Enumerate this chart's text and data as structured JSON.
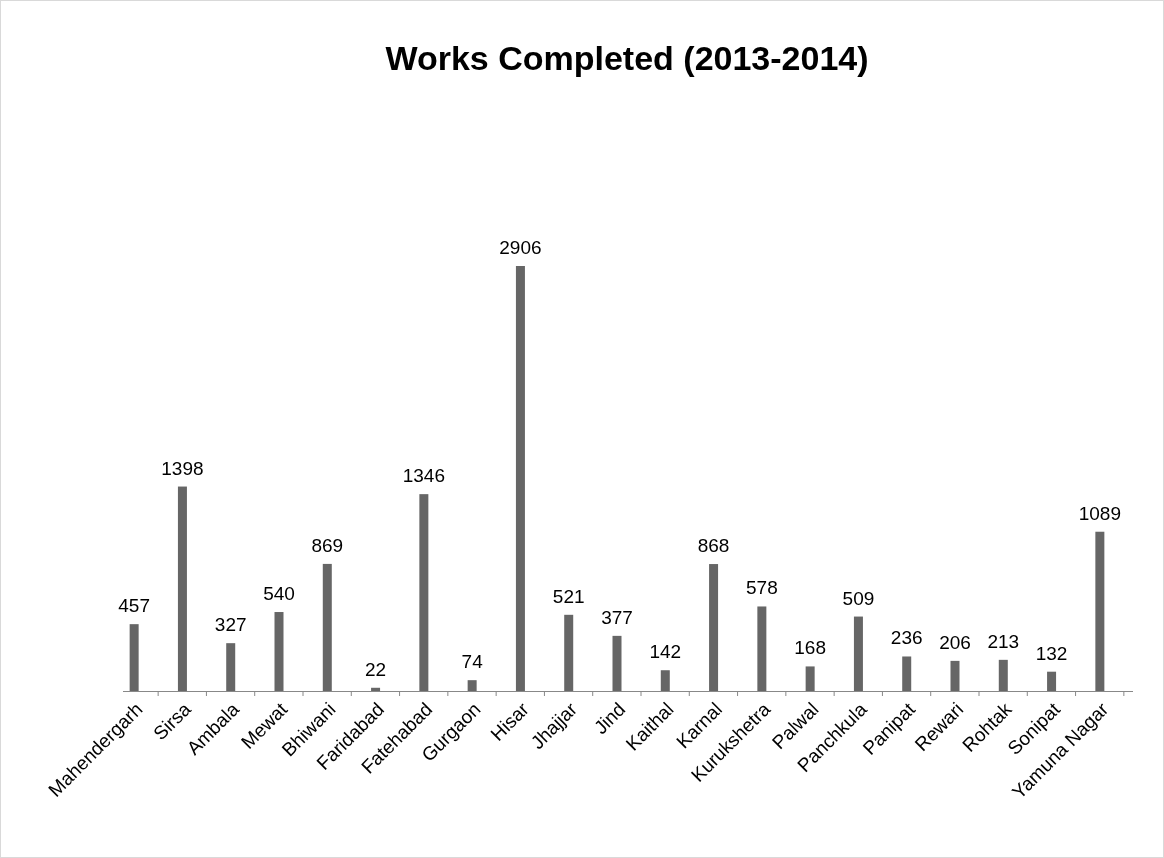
{
  "chart_data": {
    "type": "bar",
    "title": "Works Completed (2013-2014)",
    "categories": [
      "Mahendergarh",
      "Sirsa",
      "Ambala",
      "Mewat",
      "Bhiwani",
      "Faridabad",
      "Fatehabad",
      "Gurgaon",
      "Hisar",
      "Jhajjar",
      "Jind",
      "Kaithal",
      "Karnal",
      "Kurukshetra",
      "Palwal",
      "Panchkula",
      "Panipat",
      "Rewari",
      "Rohtak",
      "Sonipat",
      "Yamuna Nagar"
    ],
    "values": [
      457,
      1398,
      327,
      540,
      869,
      22,
      1346,
      74,
      2906,
      521,
      377,
      142,
      868,
      578,
      168,
      509,
      236,
      206,
      213,
      132,
      1089
    ],
    "color": "#666666",
    "data_labels": true
  }
}
